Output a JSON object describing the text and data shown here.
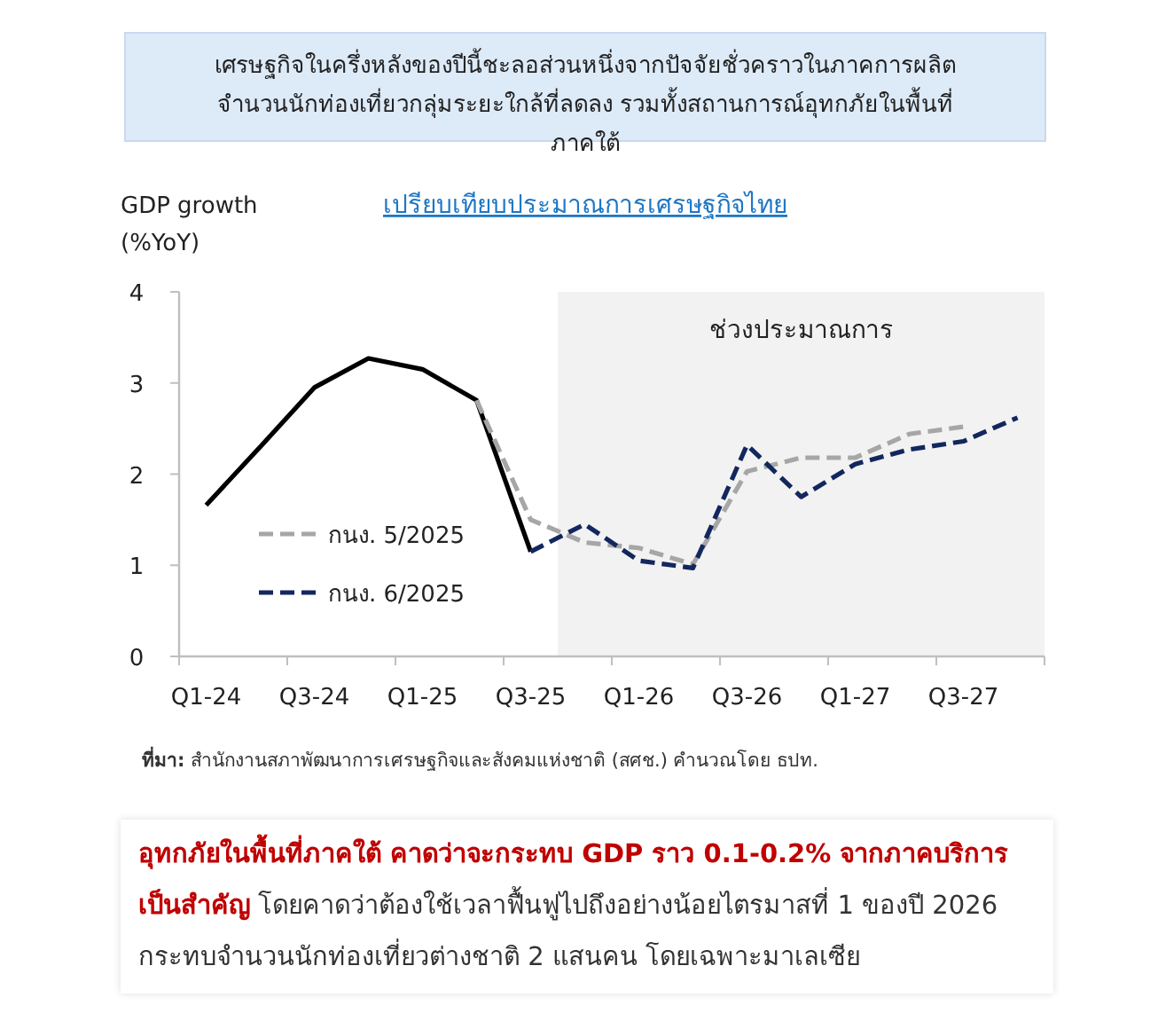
{
  "chart_data": {
    "type": "line",
    "title": "เปรียบเทียบประมาณการเศรษฐกิจไทย",
    "ylabel": "GDP growth (%YoY)",
    "categories": [
      "Q1-24",
      null,
      "Q3-24",
      null,
      "Q1-25",
      null,
      "Q3-25",
      null,
      "Q1-26",
      null,
      "Q3-26",
      null,
      "Q1-27",
      null,
      "Q3-27",
      null
    ],
    "series": [
      {
        "color": "#000000",
        "line_style": "solid",
        "values": [
          1.66,
          2.3,
          2.95,
          3.27,
          3.15,
          2.81,
          1.15,
          null,
          null,
          null,
          null,
          null,
          null,
          null,
          null,
          null
        ]
      },
      {
        "name": "กนง. 5/2025",
        "color": "#a6a6a6",
        "line_style": "dashed",
        "values": [
          null,
          null,
          null,
          null,
          null,
          2.81,
          1.5,
          1.25,
          1.19,
          1.01,
          2.03,
          2.18,
          2.18,
          2.44,
          2.52,
          null
        ]
      },
      {
        "name": "กนง. 6/2025",
        "color": "#13275e",
        "line_style": "dashed",
        "values": [
          null,
          null,
          null,
          null,
          null,
          null,
          1.15,
          1.45,
          1.05,
          0.97,
          2.32,
          1.75,
          2.11,
          2.27,
          2.36,
          2.62
        ]
      }
    ],
    "ylim": [
      0,
      4
    ],
    "yticks": [
      0,
      1,
      2,
      3,
      4
    ],
    "legend": "left",
    "annotations": [
      "เศรษฐกิจในครึ่งหลังของปีนี้ชะลอส่วนหนึ่งจากปัจจัยชั่วคราวในภาคการผลิต จำนวนนักท่องเที่ยวกลุ่มระยะใกล้ที่ลดลง รวมทั้งสถานการณ์อุทกภัยในพื้นที่ภาคใต้",
      "ที่มา: สำนักงานสภาพัฒนาการเศรษฐกิจและสังคมแห่งชาติ (สศช.) คำนวณโดย ธปท.",
      "อุทกภัยในพื้นที่ภาคใต้ คาดว่าจะกระทบ GDP ราว 0.1-0.2% จากภาคบริการเป็นสำคัญ",
      "โดยคาดว่าต้องใช้เวลาฟื้นฟูไปถึงอย่างน้อยไตรมาสที่ 1 ของปี 2026 กระทบจำนวนนักท่องเที่ยวต่างชาติ 2 แสนคน โดยเฉพาะมาเลเซีย",
      "ช่วงประมาณการ"
    ]
  }
}
